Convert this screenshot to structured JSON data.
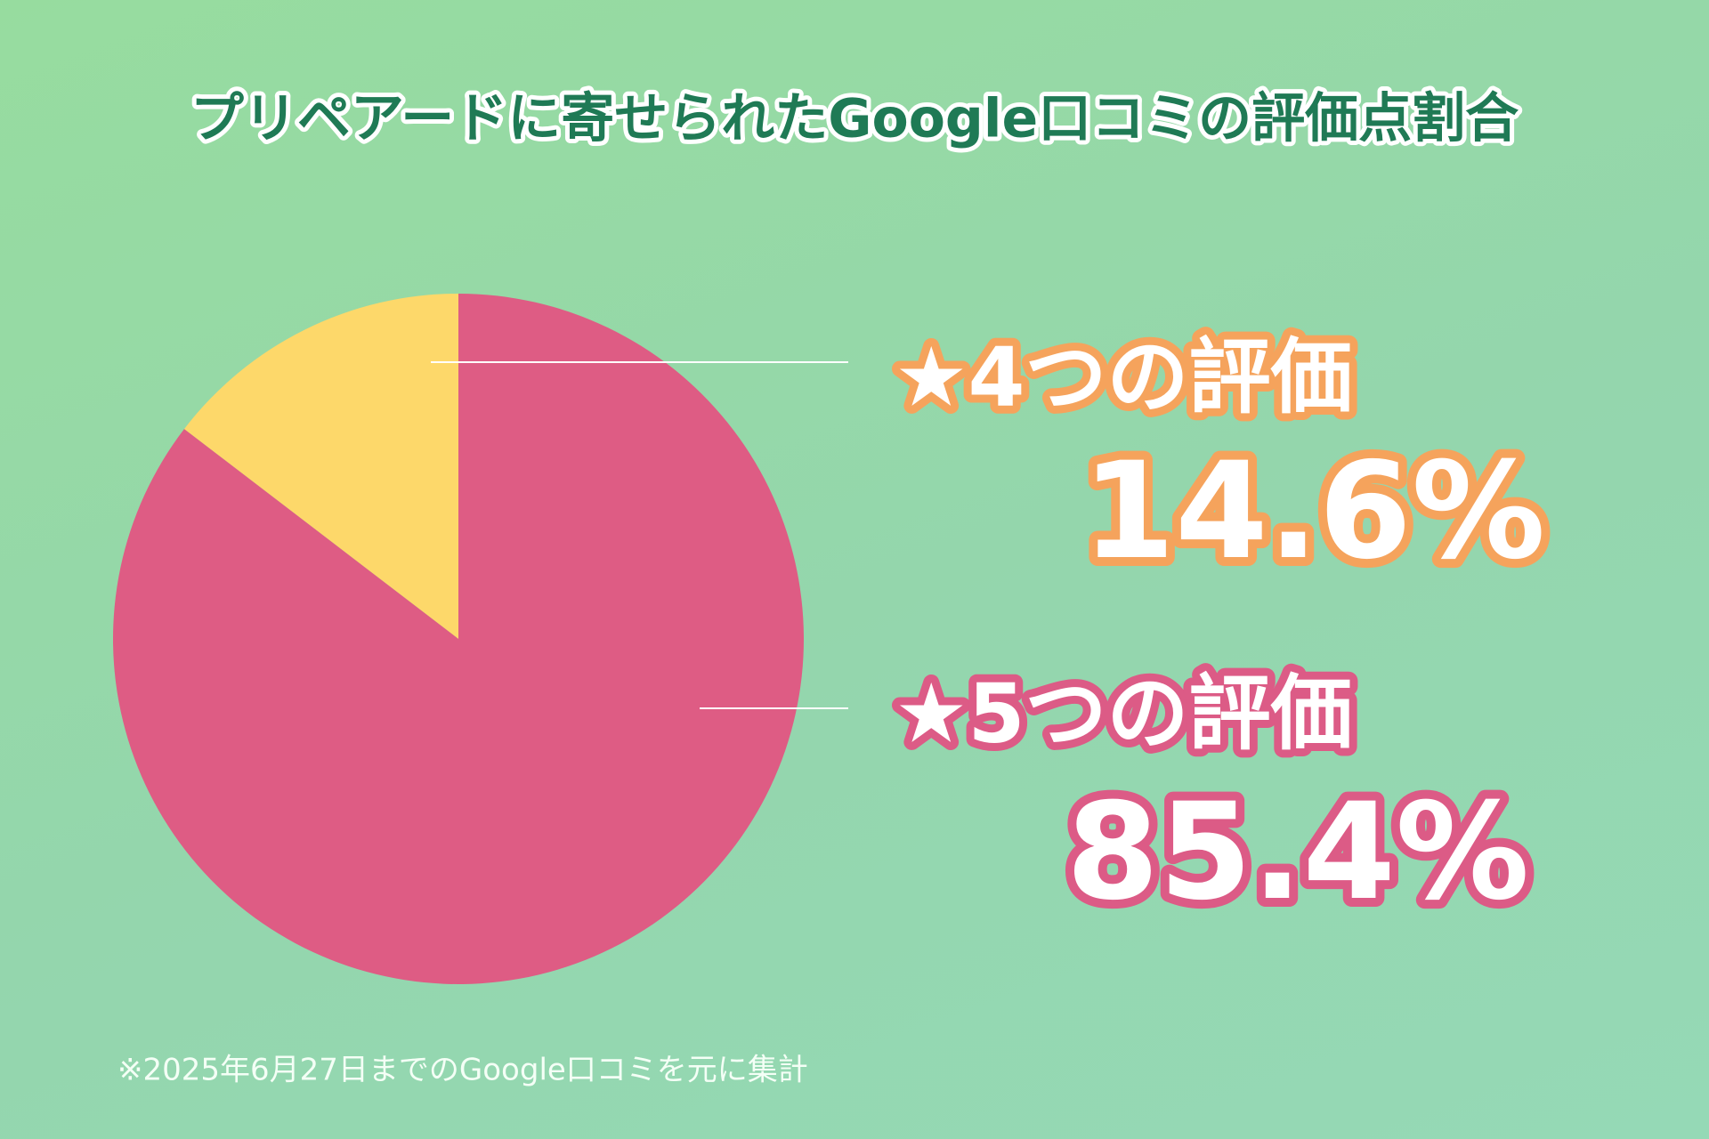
{
  "chart_data": {
    "type": "pie",
    "title": "プリペアードに寄せられたGoogle口コミの評価点割合",
    "categories": [
      "★4つの評価",
      "★5つの評価"
    ],
    "values": [
      14.6,
      85.4
    ],
    "value_labels": [
      "14.6%",
      "85.4%"
    ],
    "colors": [
      "#fdd86a",
      "#de5c84"
    ],
    "note": "※2025年6月27日までのGoogle口コミを元に集計"
  }
}
